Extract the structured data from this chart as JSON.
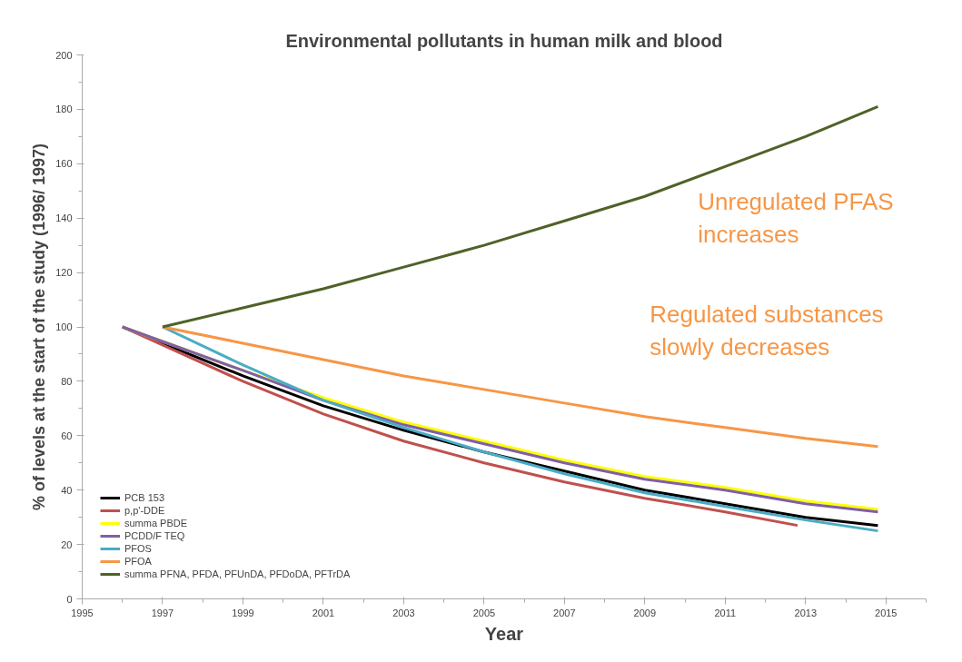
{
  "chart_data": {
    "type": "line",
    "title": "Environmental pollutants in human milk and blood",
    "xlabel": "Year",
    "ylabel": "% of levels at the start of the study (1996/ 1997)",
    "xlim": [
      1995,
      2016
    ],
    "xticks": [
      1995,
      1997,
      1999,
      2001,
      2003,
      2005,
      2007,
      2009,
      2011,
      2013,
      2015
    ],
    "ylim": [
      0,
      200
    ],
    "yticks": [
      0,
      20,
      40,
      60,
      80,
      100,
      120,
      140,
      160,
      180,
      200
    ],
    "grid": false,
    "legend": "bottom left",
    "marker": "none",
    "line_style": "solid",
    "annotations": [
      "Unregulated PFAS increases",
      "Regulated substances slowly decreases"
    ],
    "series": [
      {
        "name": "PCB 153",
        "color": "#000000",
        "x": [
          1996,
          1999,
          2001,
          2003,
          2005,
          2007,
          2009,
          2011,
          2013,
          2014.8
        ],
        "values": [
          100,
          82,
          71,
          62,
          54,
          47,
          40,
          35,
          30,
          27
        ]
      },
      {
        "name": "p,p'-DDE",
        "color": "#c0504d",
        "x": [
          1996,
          1999,
          2001,
          2003,
          2005,
          2007,
          2009,
          2011,
          2012.8
        ],
        "values": [
          100,
          80,
          68,
          58,
          50,
          43,
          37,
          32,
          27
        ]
      },
      {
        "name": "summa PBDE",
        "color": "#ffff00",
        "x": [
          1996,
          1999,
          2001,
          2003,
          2005,
          2007,
          2009,
          2011,
          2013,
          2014.8
        ],
        "values": [
          100,
          84,
          74,
          65,
          58,
          51,
          45,
          41,
          36,
          33
        ]
      },
      {
        "name": "PCDD/F TEQ",
        "color": "#7f5fa8",
        "x": [
          1996,
          1999,
          2001,
          2003,
          2005,
          2007,
          2009,
          2011,
          2013,
          2014.8
        ],
        "values": [
          100,
          84,
          73,
          64,
          57,
          50,
          44,
          40,
          35,
          32
        ]
      },
      {
        "name": "PFOS",
        "color": "#4bacc6",
        "x": [
          1997,
          1999,
          2001,
          2003,
          2005,
          2007,
          2009,
          2011,
          2013,
          2014.8
        ],
        "values": [
          100,
          86,
          73,
          63,
          54,
          46,
          39,
          34,
          29,
          25
        ]
      },
      {
        "name": "PFOA",
        "color": "#f79646",
        "x": [
          1997,
          1999,
          2001,
          2003,
          2005,
          2007,
          2009,
          2011,
          2013,
          2014.8
        ],
        "values": [
          100,
          94,
          88,
          82,
          77,
          72,
          67,
          63,
          59,
          56
        ]
      },
      {
        "name": "summa PFNA, PFDA, PFUnDA, PFDoDA, PFTrDA",
        "color": "#4f6228",
        "x": [
          1997,
          1999,
          2001,
          2003,
          2005,
          2007,
          2009,
          2011,
          2013,
          2014.8
        ],
        "values": [
          100,
          107,
          114,
          122,
          130,
          139,
          148,
          159,
          170,
          181
        ]
      }
    ]
  }
}
